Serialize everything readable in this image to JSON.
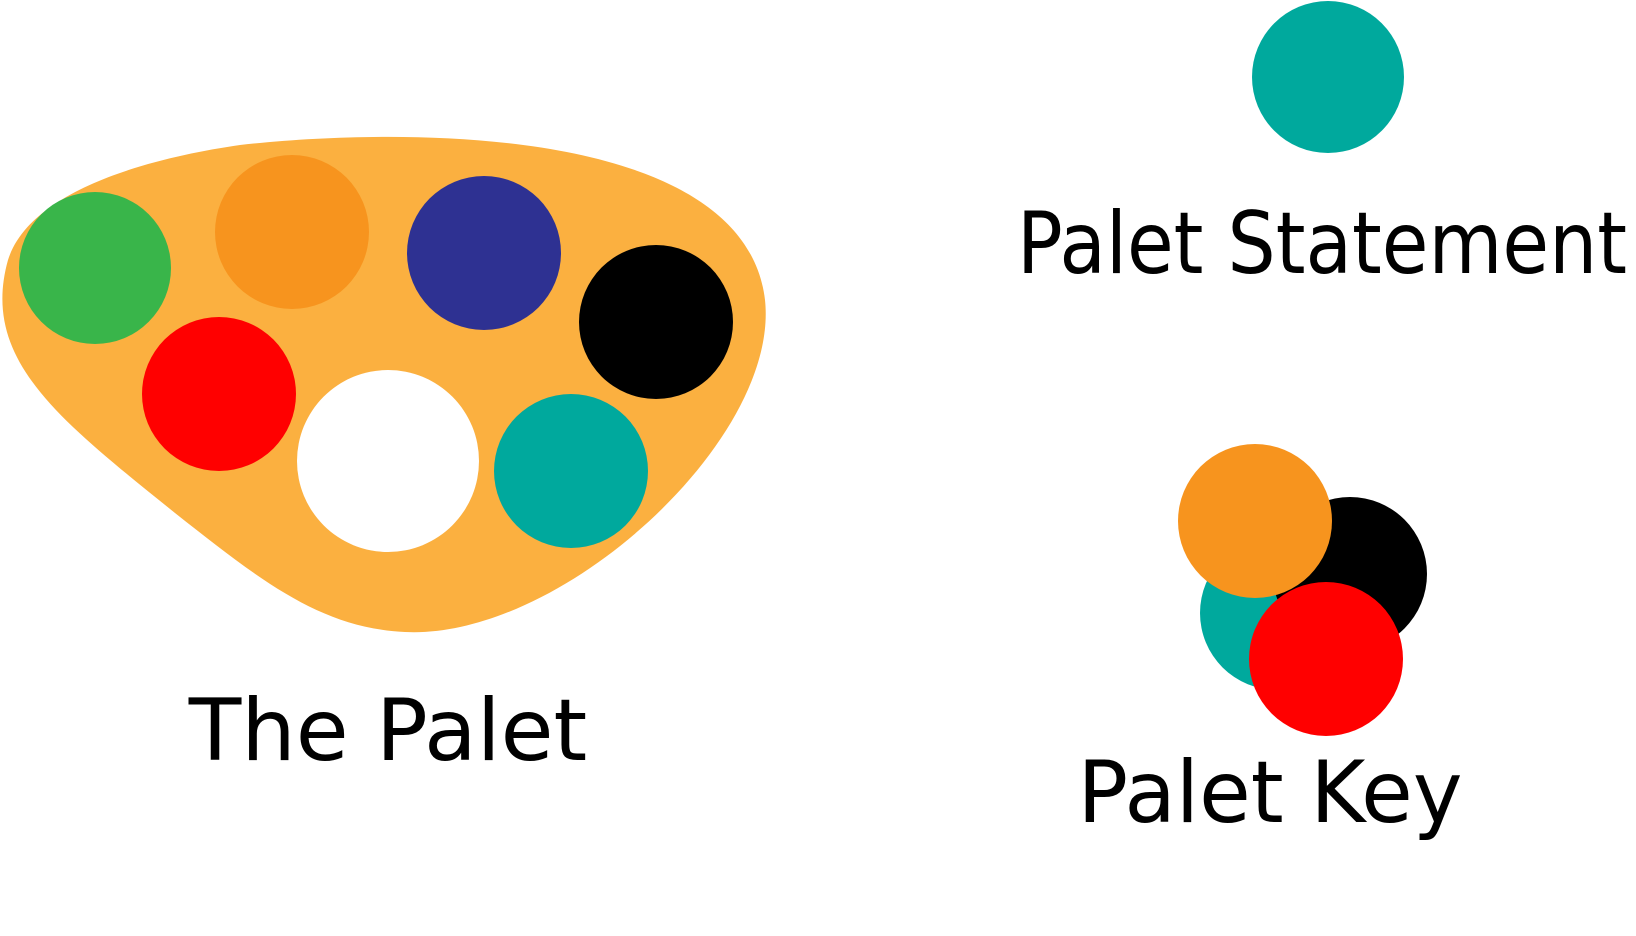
{
  "palette": {
    "label": "The Palet",
    "board_color": "#FBB040",
    "wells": [
      {
        "name": "green",
        "color": "#39B54A"
      },
      {
        "name": "orange",
        "color": "#F7941E"
      },
      {
        "name": "indigo",
        "color": "#2E3192"
      },
      {
        "name": "black",
        "color": "#000000"
      },
      {
        "name": "red",
        "color": "#FF0000"
      },
      {
        "name": "white",
        "color": "#FFFFFF"
      },
      {
        "name": "teal",
        "color": "#00A99D"
      }
    ]
  },
  "statement": {
    "label": "Palet Statement",
    "color": "#00A99D"
  },
  "key": {
    "label": "Palet Key",
    "circles": [
      {
        "name": "teal",
        "color": "#00A99D"
      },
      {
        "name": "black",
        "color": "#000000"
      },
      {
        "name": "orange",
        "color": "#F7941E"
      },
      {
        "name": "red",
        "color": "#FF0000"
      }
    ]
  }
}
